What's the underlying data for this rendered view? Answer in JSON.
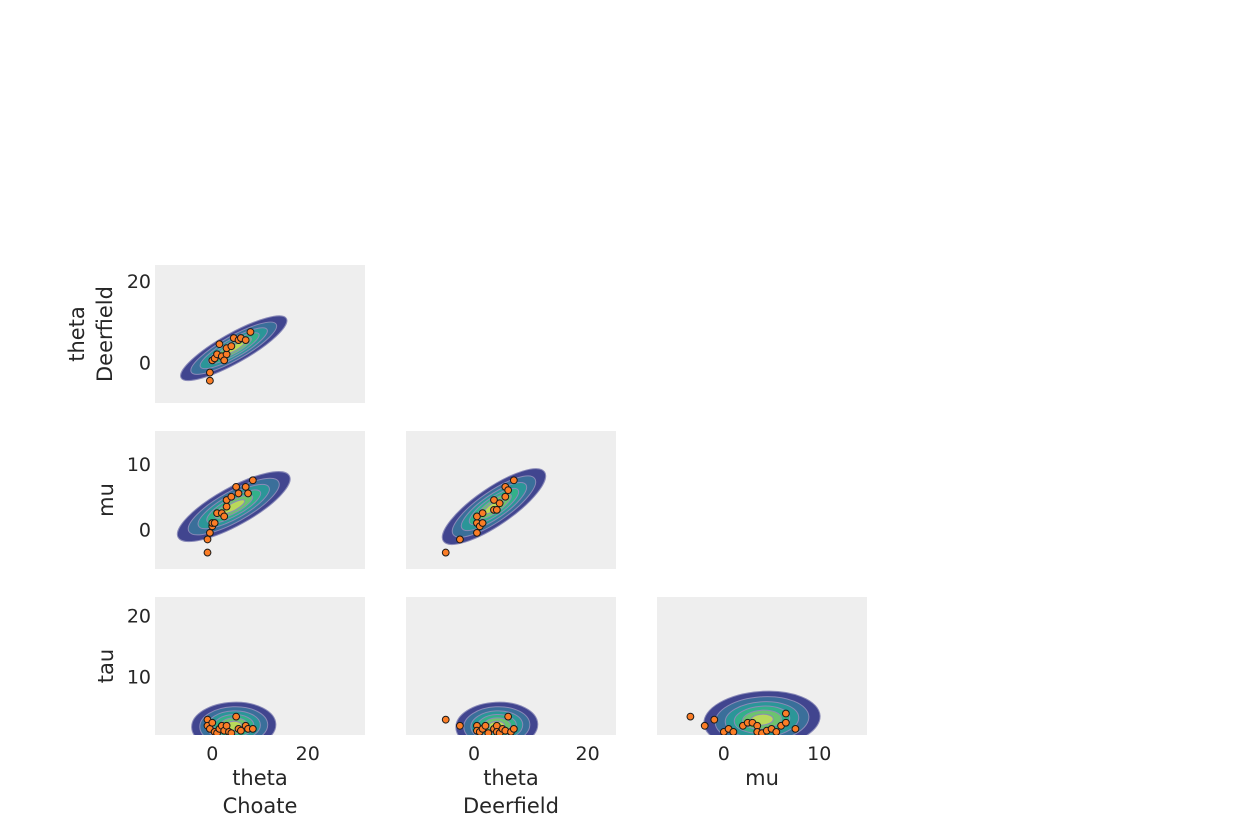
{
  "figure": {
    "type": "pair_plot",
    "kind": "kde_scatter"
  },
  "colors": {
    "panel_bg": "#eeeeee",
    "point_fill": "#fb7d26",
    "point_edge": "#1a1a1a",
    "kde_levels": [
      "#41458f",
      "#3a6f9a",
      "#2b9698",
      "#33b08a",
      "#6cc36f",
      "#b9d95b"
    ],
    "kde_outline": "#8a8ab8",
    "text": "#262626"
  },
  "labels": {
    "x": [
      [
        "theta",
        "Choate"
      ],
      [
        "theta",
        "Deerfield"
      ],
      [
        "mu"
      ]
    ],
    "y": [
      [
        "theta",
        "Deerfield"
      ],
      [
        "mu"
      ],
      [
        "tau"
      ]
    ]
  },
  "chart_data": [
    {
      "type": "scatter",
      "row": 0,
      "col": 0,
      "xlabel": "theta Choate",
      "ylabel": "theta Deerfield",
      "xlim": [
        -12,
        32
      ],
      "ylim": [
        -10,
        24
      ],
      "xticks": [
        0,
        20
      ],
      "yticks": [
        0,
        20
      ],
      "kde": {
        "cx": 4.5,
        "cy": 3.5,
        "sx": 5.0,
        "sy": 4.0,
        "rho": 0.8
      },
      "points": [
        [
          -0.5,
          -4.5
        ],
        [
          -0.5,
          -2.5
        ],
        [
          0,
          0.5
        ],
        [
          0.5,
          1
        ],
        [
          1,
          2
        ],
        [
          1.5,
          4.5
        ],
        [
          2,
          1.5
        ],
        [
          3,
          2
        ],
        [
          2.5,
          0.5
        ],
        [
          3,
          3.5
        ],
        [
          4,
          4
        ],
        [
          4.5,
          6
        ],
        [
          5.5,
          5.5
        ],
        [
          6,
          6
        ],
        [
          7,
          5.5
        ],
        [
          8,
          7.5
        ]
      ]
    },
    {
      "type": "scatter",
      "row": 1,
      "col": 0,
      "xlabel": "theta Choate",
      "ylabel": "mu",
      "xlim": [
        -12,
        32
      ],
      "ylim": [
        -6,
        15
      ],
      "xticks": [
        0,
        20
      ],
      "yticks": [
        0,
        10
      ],
      "kde": {
        "cx": 4.5,
        "cy": 3.5,
        "sx": 5.0,
        "sy": 3.5,
        "rho": 0.9
      },
      "points": [
        [
          -1,
          -3.5
        ],
        [
          -1,
          -1.5
        ],
        [
          -0.5,
          -0.5
        ],
        [
          0,
          0.5
        ],
        [
          0,
          1
        ],
        [
          0.5,
          1
        ],
        [
          1,
          2.5
        ],
        [
          2,
          2.5
        ],
        [
          2.5,
          2
        ],
        [
          3,
          3.5
        ],
        [
          3,
          4.5
        ],
        [
          4,
          5
        ],
        [
          5,
          6.5
        ],
        [
          5.5,
          5.5
        ],
        [
          7,
          6.5
        ],
        [
          7.5,
          5.5
        ],
        [
          8.5,
          7.5
        ]
      ]
    },
    {
      "type": "scatter",
      "row": 1,
      "col": 1,
      "xlabel": "theta Deerfield",
      "ylabel": "mu",
      "xlim": [
        -12,
        25
      ],
      "ylim": [
        -6,
        15
      ],
      "xticks": [
        0,
        20
      ],
      "yticks": [
        0,
        10
      ],
      "kde": {
        "cx": 3.5,
        "cy": 3.5,
        "sx": 4.0,
        "sy": 3.5,
        "rho": 0.9
      },
      "points": [
        [
          -5,
          -3.5
        ],
        [
          -2.5,
          -1.5
        ],
        [
          0.5,
          -0.5
        ],
        [
          0.5,
          1
        ],
        [
          1,
          0.5
        ],
        [
          1.5,
          1
        ],
        [
          0.5,
          2
        ],
        [
          1.5,
          2.5
        ],
        [
          3.5,
          3
        ],
        [
          3.5,
          4.5
        ],
        [
          4,
          3
        ],
        [
          4.5,
          4
        ],
        [
          5.5,
          5
        ],
        [
          5.5,
          6.5
        ],
        [
          6,
          6
        ],
        [
          7,
          7.5
        ]
      ]
    },
    {
      "type": "scatter",
      "row": 2,
      "col": 0,
      "xlabel": "theta Choate",
      "ylabel": "tau",
      "xlim": [
        -12,
        32
      ],
      "ylim": [
        0.5,
        23
      ],
      "xticks": [
        0,
        20
      ],
      "yticks": [
        10,
        20
      ],
      "kde": {
        "cx": 4.5,
        "cy": 2.0,
        "sx": 5.5,
        "sy": 2.5,
        "rho": 0.1
      },
      "points": [
        [
          -1,
          3
        ],
        [
          -1,
          2
        ],
        [
          -0.5,
          1.5
        ],
        [
          0,
          2.5
        ],
        [
          0.5,
          1
        ],
        [
          1,
          0.8
        ],
        [
          1.5,
          1.5
        ],
        [
          2,
          2
        ],
        [
          2.5,
          1.2
        ],
        [
          3,
          2
        ],
        [
          3.5,
          1
        ],
        [
          4,
          0.8
        ],
        [
          5,
          3.5
        ],
        [
          5.5,
          1.5
        ],
        [
          6,
          1.2
        ],
        [
          7,
          2
        ],
        [
          7.5,
          1.5
        ],
        [
          8.5,
          1.5
        ]
      ]
    },
    {
      "type": "scatter",
      "row": 2,
      "col": 1,
      "xlabel": "theta Deerfield",
      "ylabel": "tau",
      "xlim": [
        -12,
        25
      ],
      "ylim": [
        0.5,
        23
      ],
      "xticks": [
        0,
        20
      ],
      "yticks": [
        10,
        20
      ],
      "kde": {
        "cx": 4.0,
        "cy": 2.0,
        "sx": 4.5,
        "sy": 2.5,
        "rho": 0.1
      },
      "points": [
        [
          -5,
          3
        ],
        [
          -2.5,
          2
        ],
        [
          0.5,
          2
        ],
        [
          0.5,
          1.2
        ],
        [
          1,
          1
        ],
        [
          1.5,
          1.5
        ],
        [
          2,
          2
        ],
        [
          2.5,
          0.8
        ],
        [
          3.5,
          1.5
        ],
        [
          4,
          2
        ],
        [
          4,
          1
        ],
        [
          4.5,
          0.8
        ],
        [
          5,
          1.5
        ],
        [
          5.5,
          1.2
        ],
        [
          6,
          3.5
        ],
        [
          6.5,
          1
        ],
        [
          7,
          1.5
        ]
      ]
    },
    {
      "type": "scatter",
      "row": 2,
      "col": 2,
      "xlabel": "mu",
      "ylabel": "tau",
      "xlim": [
        -7,
        15
      ],
      "ylim": [
        0.5,
        23
      ],
      "xticks": [
        0,
        10
      ],
      "yticks": [
        10,
        20
      ],
      "kde": {
        "cx": 4.0,
        "cy": 3.0,
        "sx": 3.8,
        "sy": 3.0,
        "rho": 0.1
      },
      "points": [
        [
          -3.5,
          3.5
        ],
        [
          -2,
          2
        ],
        [
          -1,
          3
        ],
        [
          0,
          1
        ],
        [
          0.5,
          1.5
        ],
        [
          1,
          1
        ],
        [
          2,
          2
        ],
        [
          2.5,
          2.5
        ],
        [
          3,
          2.5
        ],
        [
          3.5,
          2
        ],
        [
          3.5,
          1
        ],
        [
          4,
          0.8
        ],
        [
          4.5,
          1.2
        ],
        [
          5,
          1.5
        ],
        [
          5.5,
          1
        ],
        [
          6,
          2
        ],
        [
          6.5,
          4
        ],
        [
          6.5,
          2.5
        ],
        [
          7.5,
          1.5
        ]
      ]
    }
  ]
}
